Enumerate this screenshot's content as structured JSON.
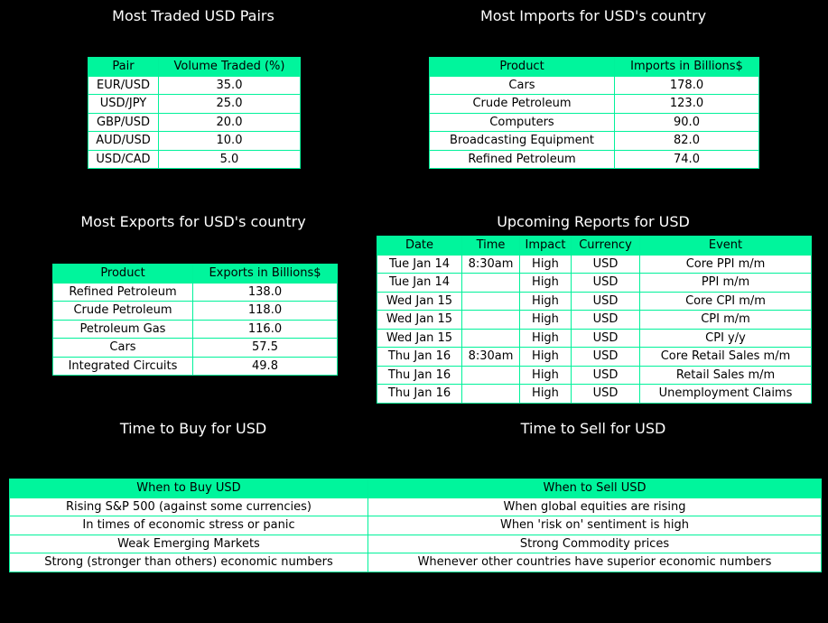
{
  "colors": {
    "background": "#000000",
    "header": "#00f59c",
    "border": "#00f29a",
    "cell": "#ffffff"
  },
  "chart_data": [
    {
      "type": "table",
      "title": "Most Traded USD Pairs",
      "columns": [
        "Pair",
        "Volume Traded (%)"
      ],
      "rows": [
        [
          "EUR/USD",
          "35.0"
        ],
        [
          "USD/JPY",
          "25.0"
        ],
        [
          "GBP/USD",
          "20.0"
        ],
        [
          "AUD/USD",
          "10.0"
        ],
        [
          "USD/CAD",
          "5.0"
        ]
      ]
    },
    {
      "type": "table",
      "title": "Most Imports for USD's country",
      "columns": [
        "Product",
        "Imports in Billions$"
      ],
      "rows": [
        [
          "Cars",
          "178.0"
        ],
        [
          "Crude Petroleum",
          "123.0"
        ],
        [
          "Computers",
          "90.0"
        ],
        [
          "Broadcasting Equipment",
          "82.0"
        ],
        [
          "Refined Petroleum",
          "74.0"
        ]
      ]
    },
    {
      "type": "table",
      "title": "Most Exports for USD's country",
      "columns": [
        "Product",
        "Exports in Billions$"
      ],
      "rows": [
        [
          "Refined Petroleum",
          "138.0"
        ],
        [
          "Crude Petroleum",
          "118.0"
        ],
        [
          "Petroleum Gas",
          "116.0"
        ],
        [
          "Cars",
          "57.5"
        ],
        [
          "Integrated Circuits",
          "49.8"
        ]
      ]
    },
    {
      "type": "table",
      "title": "Upcoming Reports for USD",
      "columns": [
        "Date",
        "Time",
        "Impact",
        "Currency",
        "Event"
      ],
      "rows": [
        [
          "Tue Jan 14",
          "8:30am",
          "High",
          "USD",
          "Core PPI m/m"
        ],
        [
          "Tue Jan 14",
          "",
          "High",
          "USD",
          "PPI m/m"
        ],
        [
          "Wed Jan 15",
          "",
          "High",
          "USD",
          "Core CPI m/m"
        ],
        [
          "Wed Jan 15",
          "",
          "High",
          "USD",
          "CPI m/m"
        ],
        [
          "Wed Jan 15",
          "",
          "High",
          "USD",
          "CPI y/y"
        ],
        [
          "Thu Jan 16",
          "8:30am",
          "High",
          "USD",
          "Core Retail Sales m/m"
        ],
        [
          "Thu Jan 16",
          "",
          "High",
          "USD",
          "Retail Sales m/m"
        ],
        [
          "Thu Jan 16",
          "",
          "High",
          "USD",
          "Unemployment Claims"
        ]
      ]
    },
    {
      "type": "table",
      "title": "Time to Buy for USD",
      "columns": [
        "When to Buy USD"
      ],
      "rows": [
        [
          "Rising S&P 500 (against some currencies)"
        ],
        [
          "In times of economic stress or panic"
        ],
        [
          "Weak Emerging Markets"
        ],
        [
          "Strong (stronger than others) economic numbers"
        ]
      ]
    },
    {
      "type": "table",
      "title": "Time to Sell for USD",
      "columns": [
        "When to Sell USD"
      ],
      "rows": [
        [
          "When global equities are rising"
        ],
        [
          "When 'risk on' sentiment is high"
        ],
        [
          "Strong Commodity prices"
        ],
        [
          "Whenever other countries have superior economic numbers"
        ]
      ]
    }
  ]
}
